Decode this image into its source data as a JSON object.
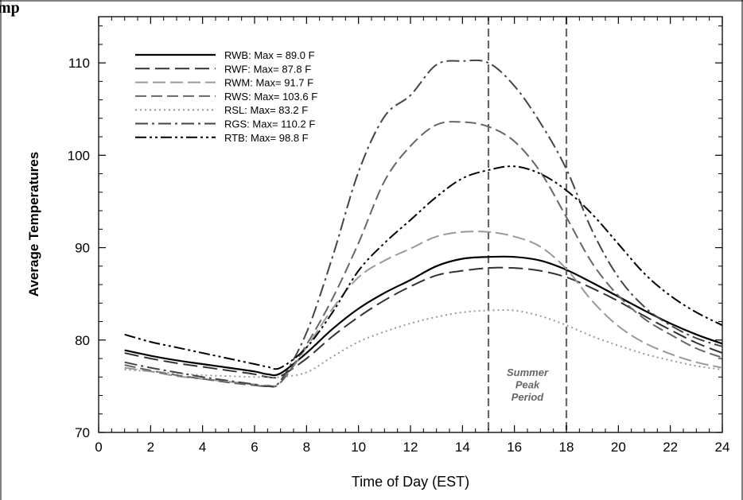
{
  "header": {
    "partial_title": "mp"
  },
  "chart_data": {
    "type": "line",
    "xlabel": "Time of Day (EST)",
    "ylabel": "Average Temperatures",
    "xlim": [
      0,
      24
    ],
    "ylim": [
      70,
      115
    ],
    "xticks": [
      0,
      2,
      4,
      6,
      8,
      10,
      12,
      14,
      16,
      18,
      20,
      22,
      24
    ],
    "yticks": [
      70,
      80,
      90,
      100,
      110
    ],
    "x": [
      1,
      2,
      3,
      4,
      5,
      6,
      6.5,
      7,
      8,
      9,
      10,
      11,
      12,
      13,
      14,
      15,
      16,
      17,
      18,
      19,
      20,
      21,
      22,
      23,
      24
    ],
    "legend_position": "top-left",
    "series": [
      {
        "name": "RWB: Max = 89.0 F",
        "color": "#000000",
        "dash": "",
        "width": 2.2,
        "values": [
          78.9,
          78.3,
          77.8,
          77.4,
          77.0,
          76.6,
          76.3,
          76.4,
          78.6,
          81.2,
          83.4,
          85.1,
          86.5,
          88.0,
          88.8,
          89.0,
          89.0,
          88.6,
          87.6,
          86.2,
          84.7,
          83.2,
          81.8,
          80.6,
          79.6
        ]
      },
      {
        "name": "RWF: Max= 87.8 F",
        "color": "#333333",
        "dash": "18 7",
        "width": 2,
        "values": [
          78.6,
          78.0,
          77.5,
          77.1,
          76.7,
          76.3,
          76.0,
          76.1,
          78.0,
          80.4,
          82.5,
          84.3,
          85.8,
          87.0,
          87.5,
          87.8,
          87.8,
          87.5,
          86.8,
          85.6,
          84.2,
          82.6,
          81.1,
          79.7,
          78.6
        ]
      },
      {
        "name": "RWM: Max= 91.7 F",
        "color": "#999999",
        "dash": "16 6",
        "width": 2,
        "values": [
          77.0,
          76.6,
          76.1,
          75.8,
          75.5,
          75.2,
          75.1,
          75.4,
          79.2,
          83.4,
          86.8,
          88.6,
          89.9,
          91.2,
          91.7,
          91.7,
          91.2,
          90.1,
          87.7,
          84.2,
          81.5,
          79.7,
          78.5,
          77.6,
          77.0
        ]
      },
      {
        "name": "RWS: Max= 103.6 F",
        "color": "#666666",
        "dash": "14 6",
        "width": 2,
        "values": [
          77.3,
          76.7,
          76.2,
          75.8,
          75.4,
          75.1,
          75.0,
          75.4,
          79.5,
          84.5,
          90.5,
          97.2,
          101.0,
          103.3,
          103.6,
          103.1,
          101.5,
          98.2,
          93.3,
          88.3,
          84.8,
          82.3,
          80.6,
          79.1,
          78.1
        ]
      },
      {
        "name": "RSL: Max= 83.2 F",
        "color": "#999999",
        "dash": "2 4",
        "width": 2,
        "values": [
          76.8,
          76.6,
          76.4,
          76.2,
          76.1,
          76.0,
          76.0,
          76.0,
          76.5,
          78.2,
          79.8,
          80.9,
          81.8,
          82.5,
          83.0,
          83.2,
          83.2,
          82.6,
          81.6,
          80.4,
          79.4,
          78.5,
          77.8,
          77.2,
          76.8
        ]
      },
      {
        "name": "RGS: Max= 110.2 F",
        "color": "#444444",
        "dash": "16 5 3 5",
        "width": 2,
        "values": [
          77.6,
          77.0,
          76.5,
          76.0,
          75.6,
          75.2,
          75.0,
          75.6,
          80.8,
          89.0,
          98.2,
          104.2,
          106.5,
          109.8,
          110.2,
          110.0,
          107.5,
          103.5,
          98.5,
          91.8,
          86.8,
          83.6,
          81.6,
          80.2,
          79.3
        ]
      },
      {
        "name": "RTB: Max= 98.8 F",
        "color": "#000000",
        "dash": "14 4 3 4 3 4",
        "width": 2,
        "values": [
          80.6,
          79.8,
          79.2,
          78.6,
          78.0,
          77.4,
          77.1,
          77.0,
          79.2,
          83.0,
          87.5,
          90.5,
          93.0,
          95.5,
          97.5,
          98.4,
          98.8,
          98.0,
          96.2,
          93.6,
          90.4,
          87.2,
          84.8,
          83.0,
          81.6
        ]
      }
    ],
    "vlines": [
      15,
      18
    ],
    "annotation": {
      "x": 16.5,
      "lines": [
        "Summer",
        "Peak",
        "Period"
      ]
    }
  }
}
